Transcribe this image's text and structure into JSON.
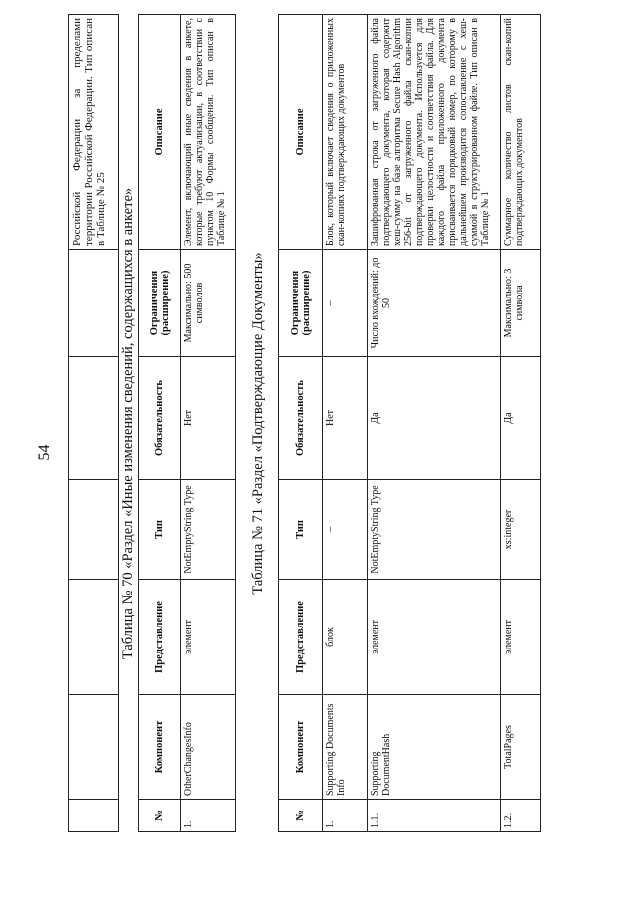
{
  "page_number": "54",
  "continuation": {
    "description": "Российской Федерации за пределами территории Российской Федерации. Тип описан в Таблице № 25"
  },
  "headers": [
    "№",
    "Компонент",
    "Представление",
    "Тип",
    "Обязательность",
    "Ограничения (расширение)",
    "Описание"
  ],
  "table70": {
    "title": "Таблица № 70 «Раздел «Иные изменения сведений, содержащихся в анкете»",
    "rows": [
      {
        "num": "1.",
        "component": "OtherChangesInfo",
        "representation": "элемент",
        "type": "NotEmptyString Type",
        "required": "Нет",
        "limits": "Максимально: 500 символов",
        "description": "Элемент, включающий иные сведения в анкете, которые требуют актуализации, в соответствии с пунктом 10 Формы сообщения. Тип описан в Таблице № 1"
      }
    ]
  },
  "table71": {
    "title": "Таблица № 71 «Раздел «Подтверждающие Документы»",
    "rows": [
      {
        "num": "1.",
        "component": "Supporting Documents Info",
        "representation": "блок",
        "type": "–",
        "required": "Нет",
        "limits": "–",
        "description": "Блок, который включает сведения о приложенных скан-копиях подтверждающих документов"
      },
      {
        "num": "1.1.",
        "component": "Supporting DocumentHash",
        "representation": "элемент",
        "type": "NotEmptyString Type",
        "required": "Да",
        "limits": "Число вхождений: до 50",
        "description": "Зашифрованная строка от загруженного файла подтверждающего документа, которая содержит хеш-сумму на базе алгоритма Secure Hash Algorithm 256-bit от загруженного файла скан-копии подтверждающего документа. Используется для проверки целостности и соответствия файла. Для каждого файла приложенного документа присваивается порядковый номер, по которому в дальнейшем производится сопоставление с хеш-суммой в структурированном файле. Тип описан в Таблице № 1"
      },
      {
        "num": "1.2.",
        "component": "TotalPages",
        "representation": "элемент",
        "type": "xs:integer",
        "required": "Да",
        "limits": "Максимально: 3 символа",
        "description": "Суммарное количество листов скан-копий подтверждающих документов"
      }
    ]
  }
}
